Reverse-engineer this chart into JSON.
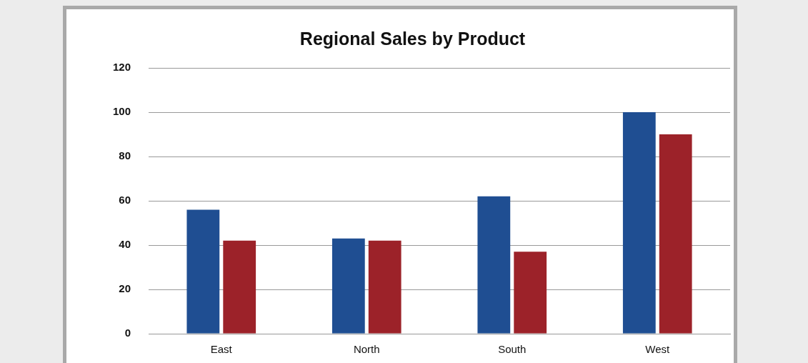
{
  "chart_data": {
    "type": "bar",
    "title": "Regional Sales by Product",
    "categories": [
      "East",
      "North",
      "South",
      "West"
    ],
    "series": [
      {
        "color": "#1f4e92",
        "values": [
          56,
          43,
          62,
          100
        ]
      },
      {
        "color": "#9c2229",
        "values": [
          42,
          42,
          37,
          90
        ]
      }
    ],
    "ylim": [
      0,
      120
    ],
    "yticks": [
      0,
      20,
      40,
      60,
      80,
      100,
      120
    ],
    "grid": "y",
    "legend": false
  }
}
